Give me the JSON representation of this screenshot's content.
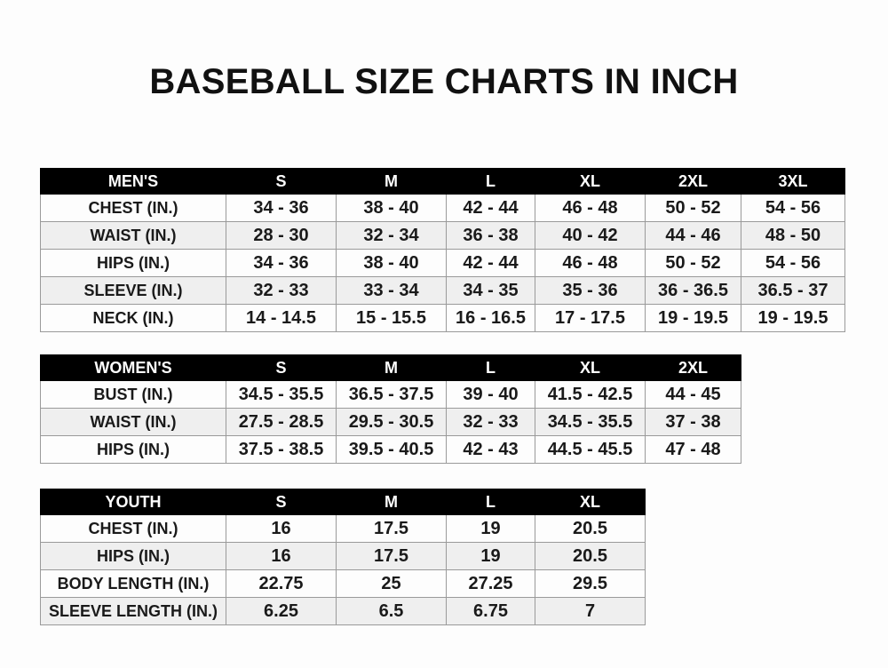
{
  "title": "BASEBALL SIZE CHARTS IN INCH",
  "men": {
    "headers": [
      "MEN'S",
      "S",
      "M",
      "L",
      "XL",
      "2XL",
      "3XL"
    ],
    "rows": [
      [
        "CHEST (IN.)",
        "34 - 36",
        "38 - 40",
        "42 - 44",
        "46 - 48",
        "50 - 52",
        "54 - 56"
      ],
      [
        "WAIST (IN.)",
        "28 - 30",
        "32 - 34",
        "36 - 38",
        "40 - 42",
        "44 - 46",
        "48 - 50"
      ],
      [
        "HIPS (IN.)",
        "34 - 36",
        "38 - 40",
        "42 - 44",
        "46 - 48",
        "50 - 52",
        "54 - 56"
      ],
      [
        "SLEEVE (IN.)",
        "32 - 33",
        "33 - 34",
        "34 - 35",
        "35 - 36",
        "36 - 36.5",
        "36.5 - 37"
      ],
      [
        "NECK (IN.)",
        "14 - 14.5",
        "15 - 15.5",
        "16 - 16.5",
        "17 - 17.5",
        "19 - 19.5",
        "19 - 19.5"
      ]
    ]
  },
  "women": {
    "headers": [
      "WOMEN'S",
      "S",
      "M",
      "L",
      "XL",
      "2XL"
    ],
    "rows": [
      [
        "BUST (IN.)",
        "34.5 - 35.5",
        "36.5 - 37.5",
        "39 - 40",
        "41.5 - 42.5",
        "44 - 45"
      ],
      [
        "WAIST (IN.)",
        "27.5 - 28.5",
        "29.5 - 30.5",
        "32 - 33",
        "34.5 - 35.5",
        "37 - 38"
      ],
      [
        "HIPS (IN.)",
        "37.5 - 38.5",
        "39.5 - 40.5",
        "42 - 43",
        "44.5 - 45.5",
        "47 - 48"
      ]
    ]
  },
  "youth": {
    "headers": [
      "YOUTH",
      "S",
      "M",
      "L",
      "XL"
    ],
    "rows": [
      [
        "CHEST (IN.)",
        "16",
        "17.5",
        "19",
        "20.5"
      ],
      [
        "HIPS (IN.)",
        "16",
        "17.5",
        "19",
        "20.5"
      ],
      [
        "BODY LENGTH (IN.)",
        "22.75",
        "25",
        "27.25",
        "29.5"
      ],
      [
        "SLEEVE LENGTH (IN.)",
        "6.25",
        "6.5",
        "6.75",
        "7"
      ]
    ]
  }
}
